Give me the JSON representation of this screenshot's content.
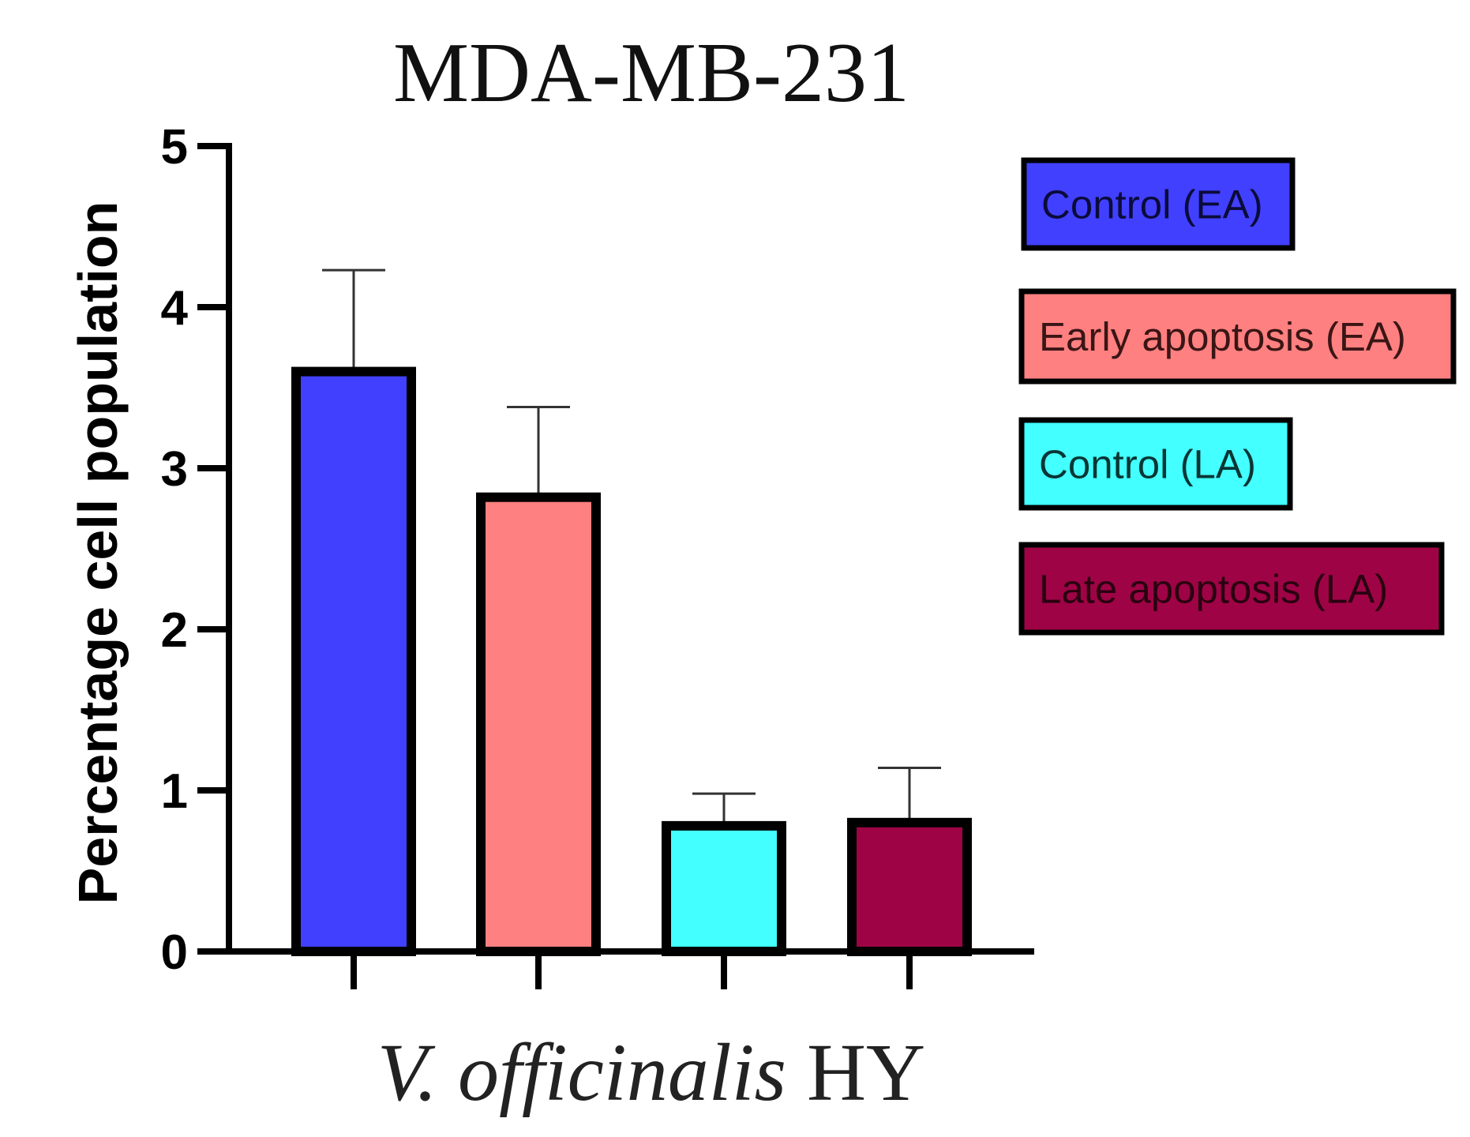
{
  "chart_data": {
    "type": "bar",
    "title": "MDA-MB-231",
    "xlabel_italic": "V. officinalis",
    "xlabel_plain": " HY",
    "ylabel": "Percentage cell population",
    "ylim": [
      0,
      5
    ],
    "yticks": [
      "0",
      "1",
      "2",
      "3",
      "4",
      "5"
    ],
    "categories": [
      "Control (EA)",
      "Early apoptosis (EA)",
      "Control (LA)",
      "Late apoptosis (LA)"
    ],
    "values": [
      3.6,
      2.82,
      0.78,
      0.8
    ],
    "errors": [
      0.63,
      0.56,
      0.2,
      0.34
    ],
    "colors": [
      "#4140ff",
      "#ff8080",
      "#43ffff",
      "#9e0445"
    ],
    "legend_text_colors": [
      "#0b0b3a",
      "#3a1515",
      "#0a3535",
      "#2a0010"
    ],
    "legend": [
      {
        "label": "Control (EA)"
      },
      {
        "label": "Early apoptosis (EA)"
      },
      {
        "label": "Control (LA)"
      },
      {
        "label": "Late apoptosis (LA)"
      }
    ]
  }
}
